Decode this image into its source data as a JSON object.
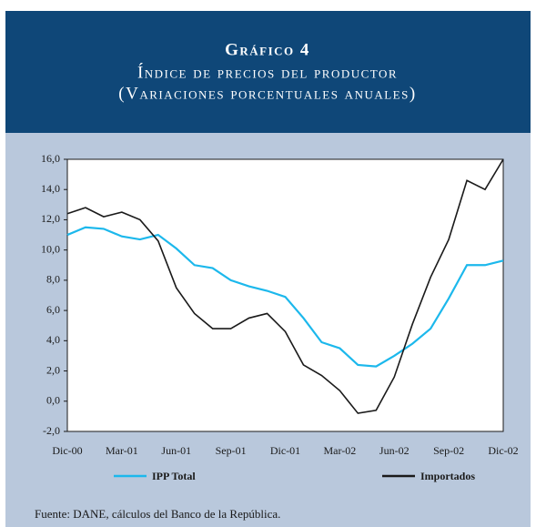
{
  "chart_data": {
    "type": "line",
    "title": "Gráfico 4",
    "subtitle": "Índice de precios del productor",
    "note": "(Variaciones porcentuales anuales)",
    "source": "Fuente: DANE, cálculos del Banco de la República.",
    "categories": [
      "Dic-00",
      null,
      null,
      "Mar-01",
      null,
      null,
      "Jun-01",
      null,
      null,
      "Sep-01",
      null,
      null,
      "Dic-01",
      null,
      null,
      "Mar-02",
      null,
      null,
      "Jun-02",
      null,
      null,
      "Sep-02",
      null,
      null,
      "Dic-02"
    ],
    "series": [
      {
        "name": "IPP Total",
        "color": "#1cb8ec",
        "values": [
          11.0,
          11.5,
          11.4,
          10.9,
          10.7,
          11.0,
          10.1,
          9.0,
          8.8,
          8.0,
          7.6,
          7.3,
          6.9,
          5.5,
          3.9,
          3.5,
          2.4,
          2.3,
          3.0,
          3.8,
          4.8,
          6.8,
          9.0,
          9.0,
          9.3
        ]
      },
      {
        "name": "Importados",
        "color": "#1a1a1a",
        "values": [
          12.4,
          12.8,
          12.2,
          12.5,
          12.0,
          10.6,
          7.5,
          5.8,
          4.8,
          4.8,
          5.5,
          5.8,
          4.6,
          2.4,
          1.7,
          0.7,
          -0.8,
          -0.6,
          1.6,
          5.1,
          8.2,
          10.7,
          14.6,
          14.0,
          16.0
        ]
      }
    ],
    "ylim": [
      -2,
      16
    ],
    "yticks": [
      {
        "value": -2,
        "label": "-2,0"
      },
      {
        "value": 0,
        "label": "0,0"
      },
      {
        "value": 2,
        "label": "2,0"
      },
      {
        "value": 4,
        "label": "4,0"
      },
      {
        "value": 6,
        "label": "6,0"
      },
      {
        "value": 8,
        "label": "8,0"
      },
      {
        "value": 10,
        "label": "10,0"
      },
      {
        "value": 12,
        "label": "12,0"
      },
      {
        "value": 14,
        "label": "14,0"
      },
      {
        "value": 16,
        "label": "16,0"
      }
    ],
    "grid": false
  }
}
